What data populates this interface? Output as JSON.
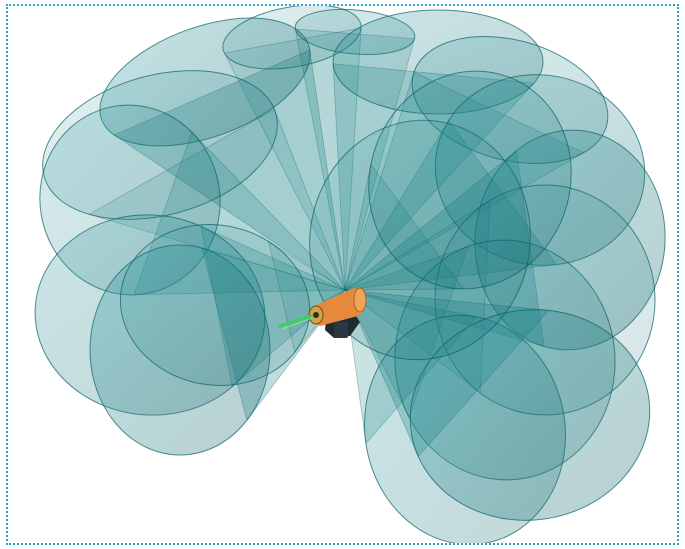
{
  "viewport": {
    "border_color": "#2aa3c8",
    "background": "#ffffff"
  },
  "cones": {
    "fill": "#0f7c7e",
    "stroke": "#0b6163",
    "fill_opacity_range": [
      0.14,
      0.34
    ]
  },
  "device": {
    "body_color": "#e6893a",
    "base_color": "#1f2a33",
    "indicator_color": "#34d45a"
  }
}
